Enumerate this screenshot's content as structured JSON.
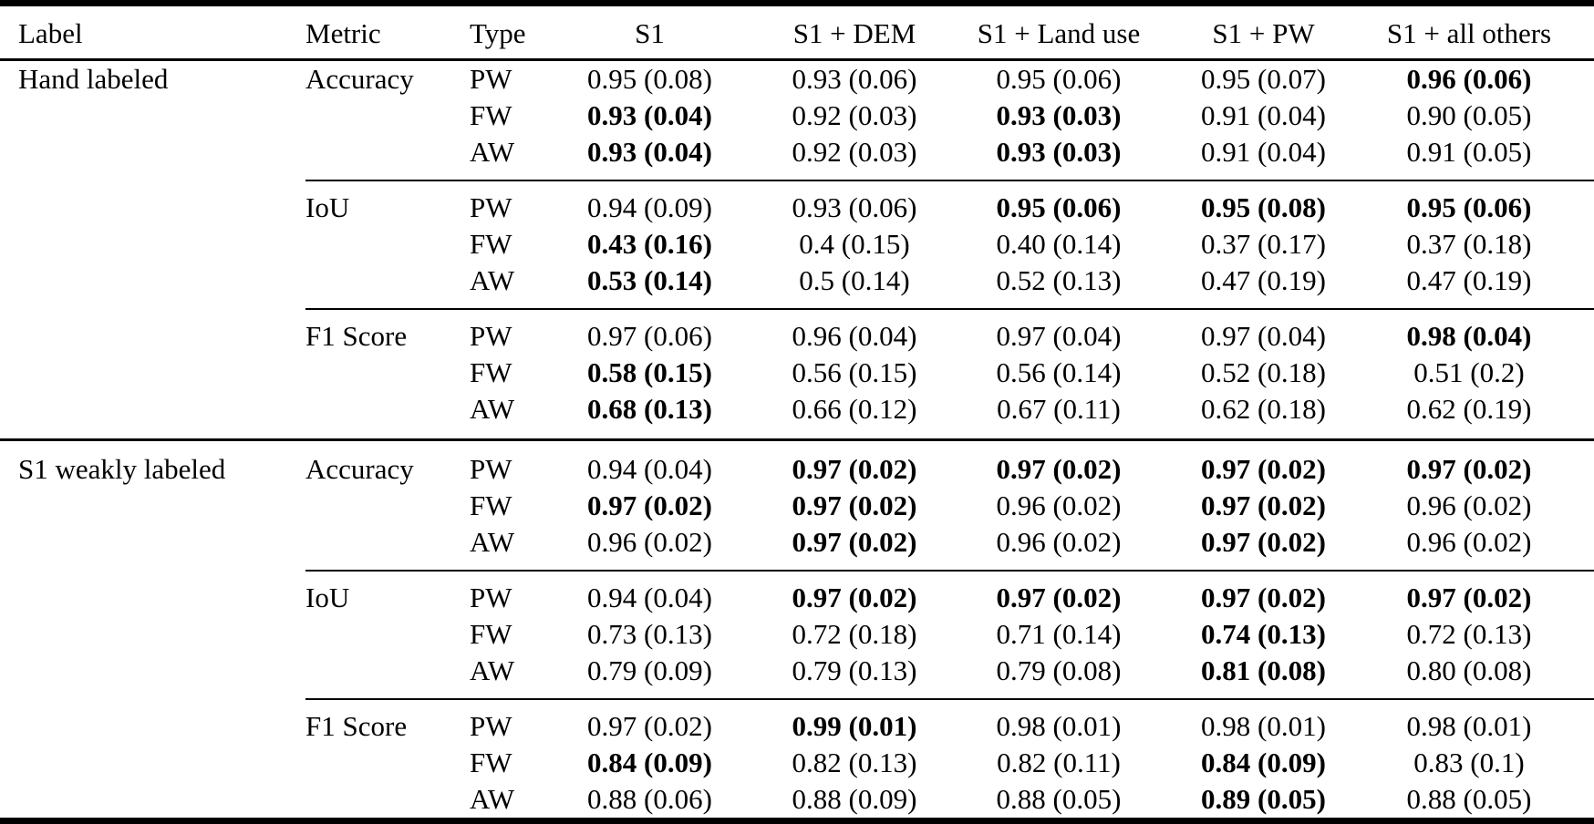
{
  "table": {
    "columns": [
      "Label",
      "Metric",
      "Type",
      "S1",
      "S1 + DEM",
      "S1 + Land use",
      "S1 + PW",
      "S1 + all others"
    ],
    "groups": [
      {
        "label": "Hand labeled",
        "metrics": [
          {
            "name": "Accuracy",
            "rows": [
              {
                "type": "PW",
                "values": [
                  "0.95 (0.08)",
                  "0.93 (0.06)",
                  "0.95 (0.06)",
                  "0.95 (0.07)",
                  "0.96 (0.06)"
                ],
                "bold": [
                  0,
                  0,
                  0,
                  0,
                  1
                ]
              },
              {
                "type": "FW",
                "values": [
                  "0.93 (0.04)",
                  "0.92 (0.03)",
                  "0.93 (0.03)",
                  "0.91 (0.04)",
                  "0.90 (0.05)"
                ],
                "bold": [
                  1,
                  0,
                  1,
                  0,
                  0
                ]
              },
              {
                "type": "AW",
                "values": [
                  "0.93 (0.04)",
                  "0.92 (0.03)",
                  "0.93 (0.03)",
                  "0.91 (0.04)",
                  "0.91 (0.05)"
                ],
                "bold": [
                  1,
                  0,
                  1,
                  0,
                  0
                ]
              }
            ]
          },
          {
            "name": "IoU",
            "rows": [
              {
                "type": "PW",
                "values": [
                  "0.94 (0.09)",
                  "0.93 (0.06)",
                  "0.95 (0.06)",
                  "0.95 (0.08)",
                  "0.95 (0.06)"
                ],
                "bold": [
                  0,
                  0,
                  1,
                  1,
                  1
                ]
              },
              {
                "type": "FW",
                "values": [
                  "0.43 (0.16)",
                  "0.4 (0.15)",
                  "0.40 (0.14)",
                  "0.37 (0.17)",
                  "0.37 (0.18)"
                ],
                "bold": [
                  1,
                  0,
                  0,
                  0,
                  0
                ]
              },
              {
                "type": "AW",
                "values": [
                  "0.53 (0.14)",
                  "0.5 (0.14)",
                  "0.52 (0.13)",
                  "0.47 (0.19)",
                  "0.47 (0.19)"
                ],
                "bold": [
                  1,
                  0,
                  0,
                  0,
                  0
                ]
              }
            ]
          },
          {
            "name": "F1 Score",
            "rows": [
              {
                "type": "PW",
                "values": [
                  "0.97 (0.06)",
                  "0.96 (0.04)",
                  "0.97 (0.04)",
                  "0.97 (0.04)",
                  "0.98 (0.04)"
                ],
                "bold": [
                  0,
                  0,
                  0,
                  0,
                  1
                ]
              },
              {
                "type": "FW",
                "values": [
                  "0.58 (0.15)",
                  "0.56 (0.15)",
                  "0.56 (0.14)",
                  "0.52 (0.18)",
                  "0.51 (0.2)"
                ],
                "bold": [
                  1,
                  0,
                  0,
                  0,
                  0
                ]
              },
              {
                "type": "AW",
                "values": [
                  "0.68 (0.13)",
                  "0.66 (0.12)",
                  "0.67 (0.11)",
                  "0.62 (0.18)",
                  "0.62 (0.19)"
                ],
                "bold": [
                  1,
                  0,
                  0,
                  0,
                  0
                ]
              }
            ]
          }
        ]
      },
      {
        "label": "S1 weakly labeled",
        "metrics": [
          {
            "name": "Accuracy",
            "rows": [
              {
                "type": "PW",
                "values": [
                  "0.94 (0.04)",
                  "0.97 (0.02)",
                  "0.97 (0.02)",
                  "0.97 (0.02)",
                  "0.97 (0.02)"
                ],
                "bold": [
                  0,
                  1,
                  1,
                  1,
                  1
                ]
              },
              {
                "type": "FW",
                "values": [
                  "0.97 (0.02)",
                  "0.97 (0.02)",
                  "0.96 (0.02)",
                  "0.97 (0.02)",
                  "0.96 (0.02)"
                ],
                "bold": [
                  1,
                  1,
                  0,
                  1,
                  0
                ]
              },
              {
                "type": "AW",
                "values": [
                  "0.96 (0.02)",
                  "0.97 (0.02)",
                  "0.96 (0.02)",
                  "0.97 (0.02)",
                  "0.96 (0.02)"
                ],
                "bold": [
                  0,
                  1,
                  0,
                  1,
                  0
                ]
              }
            ]
          },
          {
            "name": "IoU",
            "rows": [
              {
                "type": "PW",
                "values": [
                  "0.94 (0.04)",
                  "0.97 (0.02)",
                  "0.97 (0.02)",
                  "0.97 (0.02)",
                  "0.97 (0.02)"
                ],
                "bold": [
                  0,
                  1,
                  1,
                  1,
                  1
                ]
              },
              {
                "type": "FW",
                "values": [
                  "0.73 (0.13)",
                  "0.72 (0.18)",
                  "0.71 (0.14)",
                  "0.74 (0.13)",
                  "0.72 (0.13)"
                ],
                "bold": [
                  0,
                  0,
                  0,
                  1,
                  0
                ]
              },
              {
                "type": "AW",
                "values": [
                  "0.79 (0.09)",
                  "0.79 (0.13)",
                  "0.79 (0.08)",
                  "0.81 (0.08)",
                  "0.80 (0.08)"
                ],
                "bold": [
                  0,
                  0,
                  0,
                  1,
                  0
                ]
              }
            ]
          },
          {
            "name": "F1 Score",
            "rows": [
              {
                "type": "PW",
                "values": [
                  "0.97 (0.02)",
                  "0.99 (0.01)",
                  "0.98 (0.01)",
                  "0.98 (0.01)",
                  "0.98 (0.01)"
                ],
                "bold": [
                  0,
                  1,
                  0,
                  0,
                  0
                ]
              },
              {
                "type": "FW",
                "values": [
                  "0.84 (0.09)",
                  "0.82 (0.13)",
                  "0.82 (0.11)",
                  "0.84 (0.09)",
                  "0.83 (0.1)"
                ],
                "bold": [
                  1,
                  0,
                  0,
                  1,
                  0
                ]
              },
              {
                "type": "AW",
                "values": [
                  "0.88 (0.06)",
                  "0.88 (0.09)",
                  "0.88 (0.05)",
                  "0.89 (0.05)",
                  "0.88 (0.05)"
                ],
                "bold": [
                  0,
                  0,
                  0,
                  1,
                  0
                ]
              }
            ]
          }
        ]
      }
    ]
  }
}
